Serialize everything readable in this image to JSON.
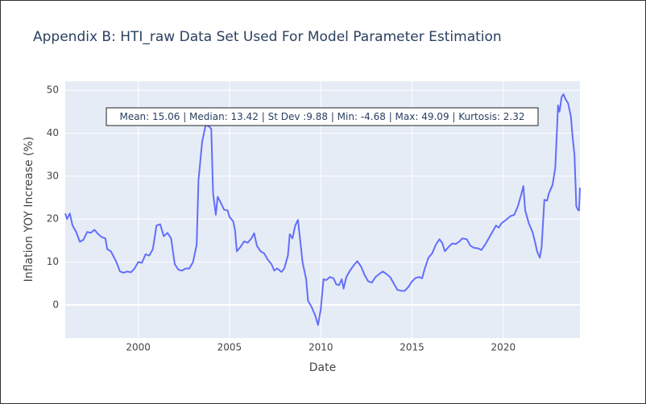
{
  "chart_data": {
    "type": "line",
    "title": "Appendix B: HTI_raw Data Set Used For Model Parameter Estimation",
    "x_label": "Date",
    "y_label": "Inflation YOY Increase (%)",
    "annotation": "Mean: 15.06 | Median: 13.42 | St Dev :9.88 | Min: -4.68 | Max: 49.09 | Kurtosis: 2.32",
    "color": "#636efa",
    "grid": true,
    "xlim": [
      1996,
      2024.2
    ],
    "ylim": [
      -7.7,
      52.1
    ],
    "xticks": [
      2000,
      2005,
      2010,
      2015,
      2020
    ],
    "yticks": [
      0,
      10,
      20,
      30,
      40,
      50
    ],
    "x": [
      1996.0,
      1996.1,
      1996.25,
      1996.4,
      1996.6,
      1996.8,
      1997.0,
      1997.2,
      1997.4,
      1997.6,
      1997.8,
      1998.0,
      1998.2,
      1998.3,
      1998.5,
      1998.8,
      1999.0,
      1999.2,
      1999.4,
      1999.6,
      1999.8,
      2000.0,
      2000.2,
      2000.4,
      2000.6,
      2000.8,
      2001.0,
      2001.2,
      2001.4,
      2001.6,
      2001.8,
      2002.0,
      2002.2,
      2002.4,
      2002.6,
      2002.8,
      2003.0,
      2003.2,
      2003.3,
      2003.5,
      2003.7,
      2003.9,
      2004.0,
      2004.1,
      2004.25,
      2004.35,
      2004.5,
      2004.7,
      2004.9,
      2005.0,
      2005.2,
      2005.3,
      2005.4,
      2005.6,
      2005.8,
      2006.0,
      2006.2,
      2006.35,
      2006.5,
      2006.7,
      2006.9,
      2007.1,
      2007.3,
      2007.45,
      2007.6,
      2007.7,
      2007.85,
      2008.0,
      2008.2,
      2008.3,
      2008.45,
      2008.6,
      2008.75,
      2008.9,
      2009.0,
      2009.2,
      2009.3,
      2009.5,
      2009.7,
      2009.85,
      2010.0,
      2010.15,
      2010.3,
      2010.5,
      2010.7,
      2010.85,
      2011.0,
      2011.15,
      2011.25,
      2011.4,
      2011.6,
      2011.8,
      2012.0,
      2012.2,
      2012.4,
      2012.6,
      2012.8,
      2013.0,
      2013.2,
      2013.4,
      2013.6,
      2013.8,
      2014.0,
      2014.2,
      2014.4,
      2014.6,
      2014.8,
      2015.0,
      2015.2,
      2015.4,
      2015.55,
      2015.7,
      2015.9,
      2016.1,
      2016.3,
      2016.5,
      2016.65,
      2016.8,
      2017.0,
      2017.2,
      2017.4,
      2017.6,
      2017.75,
      2018.0,
      2018.2,
      2018.4,
      2018.6,
      2018.8,
      2019.0,
      2019.2,
      2019.4,
      2019.6,
      2019.75,
      2019.9,
      2020.2,
      2020.4,
      2020.6,
      2020.8,
      2021.0,
      2021.1,
      2021.2,
      2021.4,
      2021.6,
      2021.75,
      2021.85,
      2022.0,
      2022.1,
      2022.25,
      2022.4,
      2022.5,
      2022.7,
      2022.85,
      2023.0,
      2023.08,
      2023.2,
      2023.3,
      2023.4,
      2023.55,
      2023.7,
      2023.8,
      2023.9,
      2024.0,
      2024.08,
      2024.15,
      2024.2
    ],
    "values": [
      21.3,
      20,
      21.3,
      18.5,
      17,
      14.7,
      15.2,
      17,
      16.8,
      17.5,
      16.5,
      15.8,
      15.5,
      13,
      12.5,
      10,
      7.8,
      7.5,
      7.8,
      7.6,
      8.5,
      10,
      9.8,
      11.8,
      11.5,
      13,
      18.5,
      18.8,
      16,
      16.8,
      15.5,
      9.5,
      8.2,
      8.0,
      8.5,
      8.5,
      10,
      14,
      29,
      38,
      42,
      41.5,
      41,
      26,
      21,
      25.2,
      24,
      22.2,
      22,
      20.5,
      19.5,
      17.5,
      12.5,
      13.5,
      14.8,
      14.5,
      15.5,
      16.7,
      13.8,
      12.5,
      12,
      10.5,
      9.5,
      8,
      8.5,
      8.2,
      7.7,
      8.5,
      11.5,
      16.5,
      15.5,
      18.5,
      19.8,
      14,
      10,
      6,
      1,
      -0.5,
      -2.5,
      -4.68,
      -1,
      6,
      5.8,
      6.5,
      6.2,
      4.8,
      4.6,
      6,
      3.8,
      6.5,
      8,
      9.2,
      10.2,
      9,
      7,
      5.5,
      5.2,
      6.5,
      7.2,
      7.8,
      7.2,
      6.5,
      5,
      3.5,
      3.3,
      3.3,
      4.2,
      5.5,
      6.3,
      6.5,
      6.2,
      8.5,
      11,
      12,
      14,
      15.3,
      14.5,
      12.5,
      13.5,
      14.3,
      14.2,
      14.8,
      15.5,
      15.3,
      13.8,
      13.3,
      13.2,
      12.8,
      14,
      15.5,
      17,
      18.5,
      18,
      19,
      20,
      20.7,
      21,
      23,
      26,
      27.7,
      22,
      19,
      17,
      14.5,
      12.5,
      11,
      13.5,
      24.5,
      24.3,
      26,
      28,
      32,
      46.5,
      45,
      48.5,
      49.09,
      48,
      47,
      44,
      39,
      35,
      23,
      22.2,
      22,
      27.3
    ]
  }
}
